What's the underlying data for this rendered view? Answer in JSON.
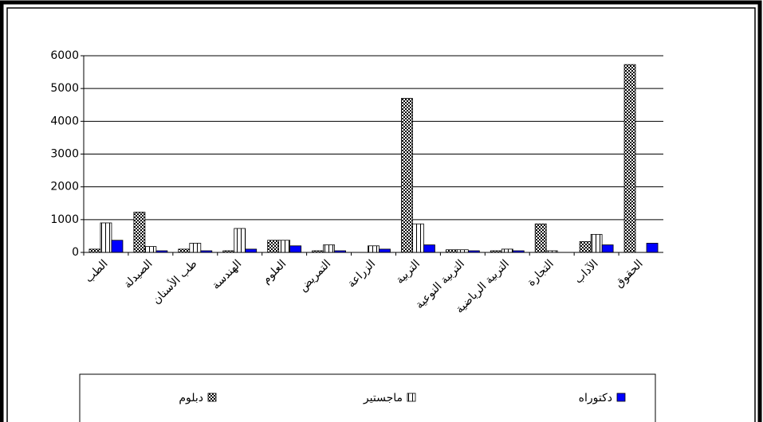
{
  "chart_data": {
    "type": "bar",
    "categories": [
      "الطب",
      "الصيدلة",
      "طب الأسنان",
      "الهندسة",
      "العلوم",
      "التمريض",
      "الزراعة",
      "التربية",
      "التربية النوعية",
      "التربية الرياضية",
      "التجارة",
      "الآداب",
      "الحقوق"
    ],
    "series": [
      {
        "name": "دبلوم",
        "color": "#000000",
        "pattern": "checker",
        "values": [
          100,
          1230,
          100,
          50,
          370,
          50,
          0,
          4700,
          80,
          50,
          870,
          330,
          5730
        ]
      },
      {
        "name": "ماجستير",
        "color": "#000000",
        "pattern": "vertical",
        "values": [
          900,
          180,
          280,
          730,
          370,
          230,
          200,
          870,
          80,
          100,
          50,
          550,
          0
        ]
      },
      {
        "name": "دكتوراه",
        "color": "#0000ff",
        "pattern": "solid",
        "values": [
          370,
          50,
          50,
          100,
          200,
          50,
          100,
          230,
          50,
          50,
          0,
          230,
          280
        ]
      }
    ],
    "ylim": [
      0,
      6000
    ],
    "yticks": [
      0,
      1000,
      2000,
      3000,
      4000,
      5000,
      6000
    ],
    "grid": true,
    "legend": "bottom"
  }
}
